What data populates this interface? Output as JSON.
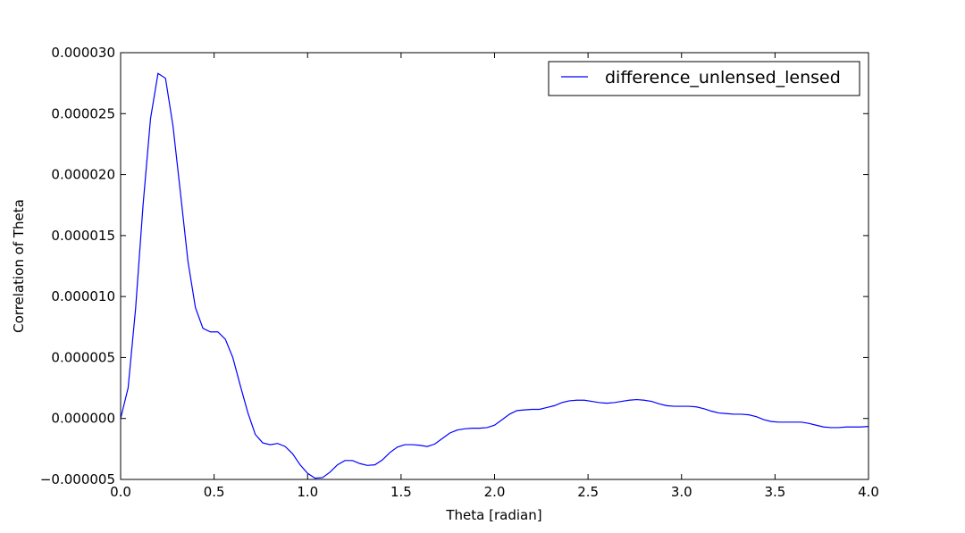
{
  "chart_data": {
    "type": "line",
    "xlabel": "Theta [radian]",
    "ylabel": "Correlation of Theta",
    "x": [
      0,
      0.04,
      0.08,
      0.12,
      0.16,
      0.2,
      0.24,
      0.28,
      0.32,
      0.36,
      0.4,
      0.44,
      0.48,
      0.52,
      0.56,
      0.6,
      0.64,
      0.68,
      0.72,
      0.76,
      0.8,
      0.84,
      0.88,
      0.92,
      0.96,
      1.0,
      1.04,
      1.08,
      1.12,
      1.16,
      1.2,
      1.24,
      1.28,
      1.32,
      1.36,
      1.4,
      1.44,
      1.48,
      1.52,
      1.56,
      1.6,
      1.64,
      1.68,
      1.72,
      1.76,
      1.8,
      1.84,
      1.88,
      1.92,
      1.96,
      2.0,
      2.04,
      2.08,
      2.12,
      2.16,
      2.2,
      2.24,
      2.28,
      2.32,
      2.36,
      2.4,
      2.44,
      2.48,
      2.52,
      2.56,
      2.6,
      2.64,
      2.68,
      2.72,
      2.76,
      2.8,
      2.84,
      2.88,
      2.92,
      2.96,
      3.0,
      3.04,
      3.08,
      3.12,
      3.16,
      3.2,
      3.24,
      3.28,
      3.32,
      3.36,
      3.4,
      3.44,
      3.48,
      3.52,
      3.56,
      3.6,
      3.64,
      3.68,
      3.72,
      3.76,
      3.8,
      3.84,
      3.88,
      3.92,
      3.96,
      4.0
    ],
    "series": [
      {
        "name": "difference_unlensed_lensed",
        "color": "#0000ff",
        "values": [
          0,
          2.5e-06,
          9e-06,
          1.75e-05,
          2.46e-05,
          2.83e-05,
          2.79e-05,
          2.4e-05,
          1.85e-05,
          1.29e-05,
          9.1e-06,
          7.4e-06,
          7.1e-06,
          7.1e-06,
          6.5e-06,
          5e-06,
          2.7e-06,
          5e-07,
          -1.3e-06,
          -2e-06,
          -2.15e-06,
          -2.05e-06,
          -2.3e-06,
          -2.9e-06,
          -3.8e-06,
          -4.5e-06,
          -4.9e-06,
          -4.85e-06,
          -4.4e-06,
          -3.8e-06,
          -3.45e-06,
          -3.45e-06,
          -3.7e-06,
          -3.85e-06,
          -3.8e-06,
          -3.4e-06,
          -2.8e-06,
          -2.35e-06,
          -2.15e-06,
          -2.15e-06,
          -2.2e-06,
          -2.3e-06,
          -2.1e-06,
          -1.65e-06,
          -1.2e-06,
          -9.5e-07,
          -8.5e-07,
          -8e-07,
          -8e-07,
          -7.5e-07,
          -5.5e-07,
          -1e-07,
          3.5e-07,
          6.5e-07,
          7e-07,
          7.5e-07,
          7.5e-07,
          9e-07,
          1.05e-06,
          1.3e-06,
          1.45e-06,
          1.5e-06,
          1.5e-06,
          1.4e-06,
          1.3e-06,
          1.25e-06,
          1.3e-06,
          1.4e-06,
          1.5e-06,
          1.55e-06,
          1.5e-06,
          1.4e-06,
          1.2e-06,
          1.05e-06,
          1e-06,
          1e-06,
          1e-06,
          9.5e-07,
          8e-07,
          6e-07,
          4.5e-07,
          4e-07,
          3.5e-07,
          3.5e-07,
          3e-07,
          1.5e-07,
          -1e-07,
          -2.5e-07,
          -3e-07,
          -3e-07,
          -3e-07,
          -3e-07,
          -4e-07,
          -5.5e-07,
          -7e-07,
          -7.5e-07,
          -7.5e-07,
          -7e-07,
          -7e-07,
          -7e-07,
          -6.5e-07
        ]
      }
    ],
    "xlim": [
      0,
      4
    ],
    "ylim": [
      -5e-06,
      3e-05
    ],
    "xticks": [
      {
        "value": 0,
        "label": "0.0"
      },
      0.5,
      {
        "value": 1,
        "label": "1.0"
      },
      1.5,
      {
        "value": 2,
        "label": "2.0"
      },
      2.5,
      {
        "value": 3,
        "label": "3.0"
      },
      3.5,
      {
        "value": 4,
        "label": "4.0"
      }
    ],
    "yticks": [
      {
        "value": -5e-06,
        "label": "−0.000005"
      },
      {
        "value": 0,
        "label": "0.000000"
      },
      {
        "value": 5e-06,
        "label": "0.000005"
      },
      {
        "value": 1e-05,
        "label": "0.000010"
      },
      {
        "value": 1.5e-05,
        "label": "0.000015"
      },
      {
        "value": 2e-05,
        "label": "0.000020"
      },
      {
        "value": 2.5e-05,
        "label": "0.000025"
      },
      {
        "value": 3e-05,
        "label": "0.000030"
      }
    ],
    "grid": false,
    "legend": "upper right"
  }
}
